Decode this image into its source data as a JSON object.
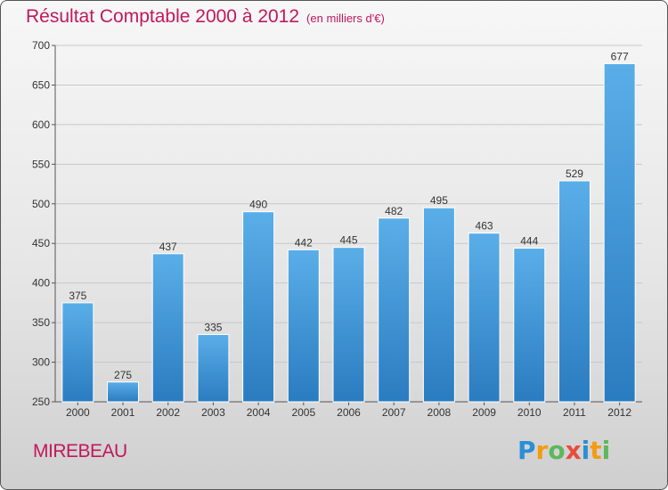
{
  "header": {
    "title": "Résultat Comptable 2000 à 2012",
    "subtitle": "(en milliers d'€)"
  },
  "footer": {
    "commune": "MIREBEAU",
    "brand": "Proxiti"
  },
  "colors": {
    "bar_top": "#5aaee8",
    "bar_bottom": "#2a7cc0",
    "title": "#c2185b",
    "grid": "#c8c8c8"
  },
  "chart_data": {
    "type": "bar",
    "title": "Résultat Comptable 2000 à 2012",
    "subtitle": "(en milliers d'€)",
    "xlabel": "",
    "ylabel": "",
    "categories": [
      "2000",
      "2001",
      "2002",
      "2003",
      "2004",
      "2005",
      "2006",
      "2007",
      "2008",
      "2009",
      "2010",
      "2011",
      "2012"
    ],
    "values": [
      375,
      275,
      437,
      335,
      490,
      442,
      445,
      482,
      495,
      463,
      444,
      529,
      677
    ],
    "ylim": [
      250,
      700
    ],
    "yticks": [
      250,
      300,
      350,
      400,
      450,
      500,
      550,
      600,
      650,
      700
    ],
    "grid": true
  }
}
